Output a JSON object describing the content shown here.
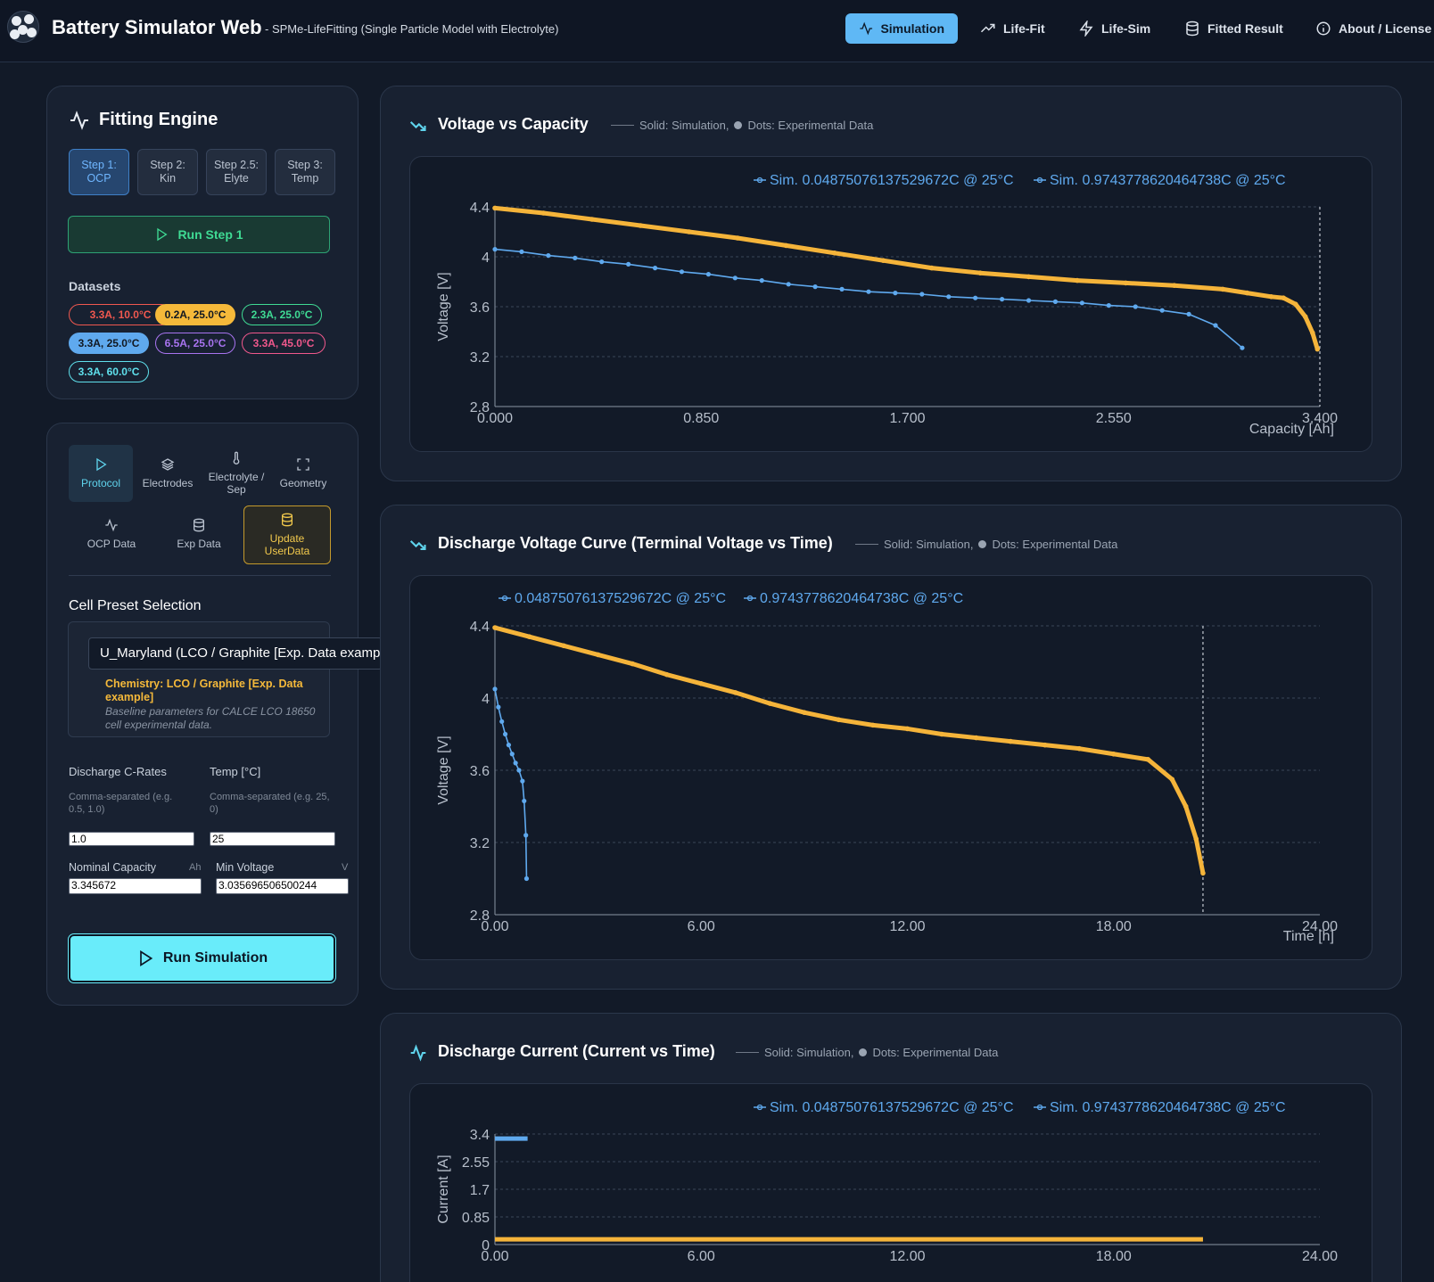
{
  "header": {
    "title": "Battery Simulator Web",
    "subtitle": "- SPMe-LifeFitting (Single Particle Model with Electrolyte)",
    "nav": [
      {
        "label": "Simulation",
        "icon": "activity-icon",
        "active": true
      },
      {
        "label": "Life-Fit",
        "icon": "trend-up-icon",
        "active": false
      },
      {
        "label": "Life-Sim",
        "icon": "bolt-icon",
        "active": false
      },
      {
        "label": "Fitted Result",
        "icon": "database-icon",
        "active": false
      },
      {
        "label": "About / License",
        "icon": "info-icon",
        "active": false
      }
    ]
  },
  "fitting": {
    "title": "Fitting Engine",
    "steps": [
      {
        "line1": "Step 1:",
        "line2": "OCP",
        "active": true
      },
      {
        "line1": "Step 2:",
        "line2": "Kin",
        "active": false
      },
      {
        "line1": "Step 2.5:",
        "line2": "Elyte",
        "active": false
      },
      {
        "line1": "Step 3:",
        "line2": "Temp",
        "active": false
      }
    ],
    "run_label": "Run Step 1",
    "datasets_label": "Datasets",
    "datasets": [
      {
        "label": "3.3A, 10.0°C",
        "color": "#f0584f",
        "filled": false
      },
      {
        "label": "0.2A, 25.0°C",
        "color": "#f5b93a",
        "filled": true
      },
      {
        "label": "2.3A, 25.0°C",
        "color": "#3fdb94",
        "filled": false
      },
      {
        "label": "3.3A, 25.0°C",
        "color": "#5fa9ee",
        "filled": true
      },
      {
        "label": "6.5A, 25.0°C",
        "color": "#a874f0",
        "filled": false
      },
      {
        "label": "3.3A, 45.0°C",
        "color": "#f0588c",
        "filled": false
      },
      {
        "label": "3.3A, 60.0°C",
        "color": "#5fe0ec",
        "filled": false
      }
    ]
  },
  "settings": {
    "tabs": [
      {
        "label": "Protocol",
        "icon": "play-icon",
        "active": true
      },
      {
        "label": "Electrodes",
        "icon": "layers-icon",
        "active": false
      },
      {
        "label": "Electrolyte / Sep",
        "icon": "thermometer-icon",
        "active": false
      },
      {
        "label": "Geometry",
        "icon": "expand-icon",
        "active": false
      },
      {
        "label": "OCP Data",
        "icon": "activity-icon",
        "active": false
      },
      {
        "label": "Exp Data",
        "icon": "database-icon",
        "active": false
      },
      {
        "label": "Update UserData",
        "icon": "database-icon",
        "active": false
      }
    ],
    "preset_label": "Cell Preset Selection",
    "preset_value": "U_Maryland (LCO / Graphite [Exp. Data example])",
    "chemistry": "Chemistry: LCO / Graphite [Exp. Data example]",
    "description": "Baseline parameters for CALCE LCO 18650 cell experimental data.",
    "c_rates": {
      "label": "Discharge C-Rates",
      "hint": "Comma-separated (e.g. 0.5, 1.0)",
      "value": "1.0"
    },
    "temp": {
      "label": "Temp [°C]",
      "hint": "Comma-separated (e.g. 25, 0)",
      "value": "25"
    },
    "capacity": {
      "label": "Nominal Capacity",
      "unit": "Ah",
      "value": "3.345672"
    },
    "min_voltage": {
      "label": "Min Voltage",
      "unit": "V",
      "value": "3.035696506500244"
    },
    "run_label": "Run Simulation"
  },
  "legend_note": {
    "solid": "Solid: Simulation,",
    "dots": "Dots: Experimental Data"
  },
  "colors": {
    "sim_low": "#5fa9ee",
    "sim_high": "#f5b43a",
    "accent": "#69ecfa"
  },
  "chart_data": [
    {
      "type": "line",
      "title": "Voltage vs Capacity",
      "xlabel": "Capacity [Ah]",
      "ylabel": "Voltage [V]",
      "xlim": [
        0,
        3.4
      ],
      "ylim": [
        2.8,
        4.4
      ],
      "xticks": [
        "0.000",
        "0.850",
        "1.700",
        "2.550",
        "3.400"
      ],
      "yticks": [
        "2.8",
        "3.2",
        "3.6",
        "4",
        "4.4"
      ],
      "vline_x": 3.4,
      "series": [
        {
          "name": "Sim. 0.04875076137529672C @ 25°C",
          "color": "#5fa9ee",
          "x": [
            0,
            0.11,
            0.22,
            0.33,
            0.44,
            0.55,
            0.66,
            0.77,
            0.88,
            0.99,
            1.1,
            1.21,
            1.32,
            1.43,
            1.54,
            1.65,
            1.76,
            1.87,
            1.98,
            2.09,
            2.2,
            2.31,
            2.42,
            2.53,
            2.64,
            2.75,
            2.86,
            2.97,
            3.08
          ],
          "y": [
            4.06,
            4.04,
            4.01,
            3.99,
            3.96,
            3.94,
            3.91,
            3.88,
            3.86,
            3.83,
            3.81,
            3.78,
            3.76,
            3.74,
            3.72,
            3.71,
            3.7,
            3.68,
            3.67,
            3.66,
            3.65,
            3.64,
            3.63,
            3.61,
            3.6,
            3.57,
            3.54,
            3.45,
            3.27
          ]
        },
        {
          "name": "Sim. 0.9743778620464738C @ 25°C",
          "color": "#f5b43a",
          "x": [
            0,
            0.2,
            0.4,
            0.6,
            0.8,
            1.0,
            1.2,
            1.4,
            1.6,
            1.8,
            2.0,
            2.2,
            2.4,
            2.6,
            2.8,
            3.0,
            3.1,
            3.2,
            3.25,
            3.3,
            3.34,
            3.37,
            3.39
          ],
          "y": [
            4.39,
            4.35,
            4.3,
            4.25,
            4.2,
            4.15,
            4.09,
            4.03,
            3.97,
            3.91,
            3.87,
            3.84,
            3.81,
            3.79,
            3.77,
            3.74,
            3.71,
            3.68,
            3.67,
            3.62,
            3.52,
            3.39,
            3.26
          ]
        }
      ]
    },
    {
      "type": "line",
      "title": "Discharge Voltage Curve (Terminal Voltage vs Time)",
      "xlabel": "Time [h]",
      "ylabel": "Voltage [V]",
      "xlim": [
        0,
        24
      ],
      "ylim": [
        2.8,
        4.4
      ],
      "xticks": [
        "0.00",
        "6.00",
        "12.00",
        "18.00",
        "24.00"
      ],
      "yticks": [
        "2.8",
        "3.2",
        "3.6",
        "4",
        "4.4"
      ],
      "vline_x": 20.6,
      "series": [
        {
          "name": "0.04875076137529672C @ 25°C",
          "color": "#5fa9ee",
          "x": [
            0,
            0.1,
            0.2,
            0.3,
            0.4,
            0.5,
            0.6,
            0.7,
            0.8,
            0.85,
            0.9,
            0.92
          ],
          "y": [
            4.05,
            3.95,
            3.87,
            3.8,
            3.74,
            3.69,
            3.64,
            3.6,
            3.54,
            3.43,
            3.24,
            3.0
          ]
        },
        {
          "name": "0.9743778620464738C @ 25°C",
          "color": "#f5b43a",
          "x": [
            0,
            1,
            2,
            3,
            4,
            5,
            6,
            7,
            8,
            9,
            10,
            11,
            12,
            13,
            14,
            15,
            16,
            17,
            18,
            19,
            19.7,
            20.1,
            20.4,
            20.6
          ],
          "y": [
            4.39,
            4.34,
            4.29,
            4.24,
            4.19,
            4.13,
            4.08,
            4.03,
            3.97,
            3.92,
            3.88,
            3.85,
            3.83,
            3.8,
            3.78,
            3.76,
            3.74,
            3.72,
            3.69,
            3.66,
            3.55,
            3.4,
            3.22,
            3.03
          ]
        }
      ]
    },
    {
      "type": "line",
      "title": "Discharge Current (Current vs Time)",
      "xlabel": "",
      "ylabel": "Current [A]",
      "xlim": [
        0,
        24
      ],
      "ylim": [
        0,
        3.4
      ],
      "xticks": [
        "0.00",
        "6.00",
        "12.00",
        "18.00",
        "24.00"
      ],
      "yticks": [
        "0",
        "0.85",
        "1.7",
        "2.55",
        "3.4"
      ],
      "series": [
        {
          "name": "Sim. 0.04875076137529672C @ 25°C",
          "color": "#5fa9ee",
          "x": [
            0,
            0.95
          ],
          "y": [
            3.26,
            3.26
          ]
        },
        {
          "name": "Sim. 0.9743778620464738C @ 25°C",
          "color": "#f5b43a",
          "x": [
            0,
            20.6
          ],
          "y": [
            0.16,
            0.16
          ]
        }
      ]
    }
  ]
}
